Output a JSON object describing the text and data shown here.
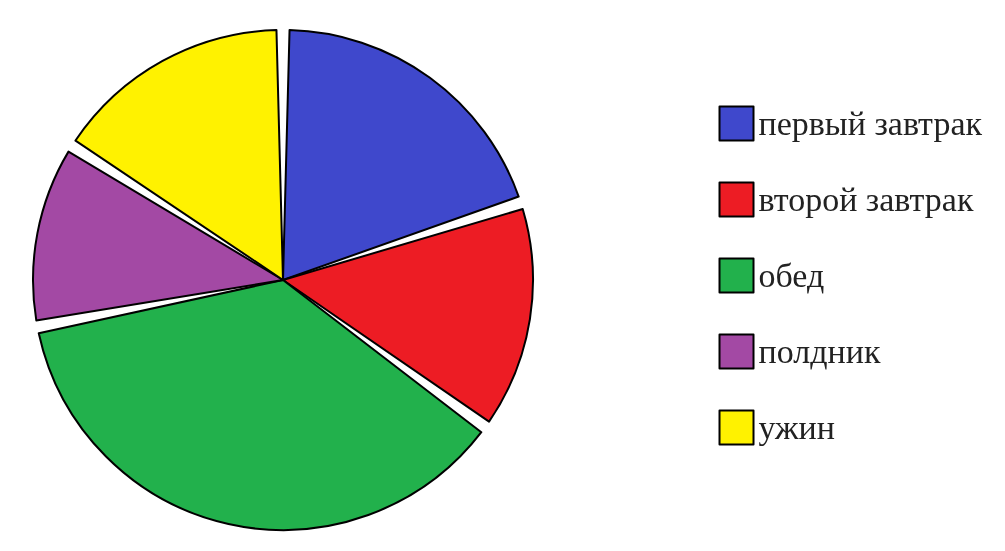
{
  "chart_data": {
    "type": "pie",
    "categories": [
      "первый завтрак",
      "второй завтрак",
      "обед",
      "полдник",
      "ужин"
    ],
    "values": [
      20,
      15,
      37,
      12,
      16
    ],
    "colors": [
      "#3f48cc",
      "#ed1c24",
      "#22b14c",
      "#a349a4",
      "#fff200"
    ],
    "legend": "right"
  }
}
